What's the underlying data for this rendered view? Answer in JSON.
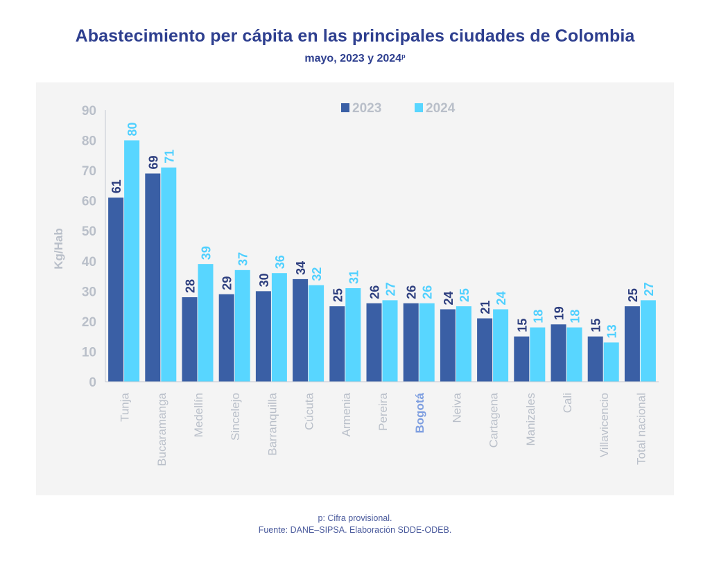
{
  "chart_data": {
    "type": "bar",
    "title": "Abastecimiento per cápita en las principales ciudades de Colombia",
    "subtitle": "mayo, 2023 y 2024",
    "subtitle_superscript": "p",
    "xlabel": "",
    "ylabel": "Kg/Hab",
    "ylim": [
      0,
      90
    ],
    "yticks": [
      0,
      10,
      20,
      30,
      40,
      50,
      60,
      70,
      80,
      90
    ],
    "grid": false,
    "legend_position": "top-center",
    "values_note": "Data labels shown rounded to whole numbers",
    "categories": [
      "Tunja",
      "Bucaramanga",
      "Medellín",
      "Sincelejo",
      "Barranquilla",
      "Cúcuta",
      "Armenia",
      "Pereira",
      "Bogotá",
      "Neiva",
      "Cartagena",
      "Manizales",
      "Cali",
      "Villavicencio",
      "Total nacional"
    ],
    "highlighted_category": "Bogotá",
    "series": [
      {
        "name": "2023",
        "color": "#3a5fa5",
        "label_color": "#2e3f7f",
        "values": [
          61,
          69,
          28,
          29,
          30,
          34,
          25,
          26,
          26,
          24,
          21,
          15,
          19,
          15,
          25
        ]
      },
      {
        "name": "2024",
        "color": "#58d6ff",
        "label_color": "#4fd0ff",
        "values": [
          80,
          71,
          39,
          37,
          36,
          32,
          31,
          27,
          26,
          25,
          24,
          18,
          18,
          13,
          27
        ]
      }
    ]
  },
  "colors": {
    "title": "#2e3f8f",
    "axis_text": "#b9bfc9",
    "highlight_label": "#7f9fe0",
    "panel_bg": "#f4f4f4",
    "axis_line": "#c4c9d2"
  },
  "footer": {
    "note": "p: Cifra provisional.",
    "source": "Fuente: DANE–SIPSA. Elaboración SDDE-ODEB."
  }
}
